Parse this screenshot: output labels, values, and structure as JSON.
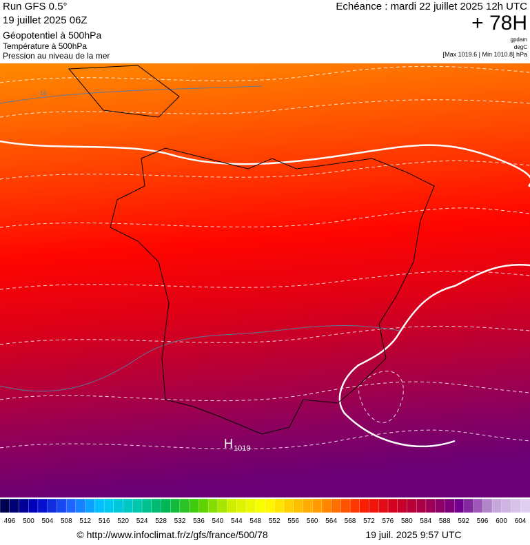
{
  "header": {
    "run": "Run GFS 0.5°",
    "date": "19 juillet 2025 06Z",
    "title": "Géopotentiel à 500hPa",
    "subtitle1": "Température à 500hPa",
    "subtitle2": "Pression au niveau de la mer",
    "echeance": "Echéance : mardi 22 juillet 2025 12h UTC",
    "lead": "+ 78H",
    "unit1": "gpdam",
    "unit2": "degC",
    "range": "[Max 1019.6 | Min 1010.8] hPa"
  },
  "map": {
    "high": "H",
    "high_value": "1019",
    "contour_label": "-16"
  },
  "scale": {
    "labels": [
      496,
      500,
      504,
      508,
      512,
      516,
      520,
      524,
      528,
      532,
      536,
      540,
      544,
      548,
      552,
      556,
      560,
      564,
      568,
      572,
      576,
      580,
      584,
      588,
      592,
      596,
      600,
      604
    ]
  },
  "footer": {
    "url": "© http://www.infoclimat.fr/z/gfs/france/500/78",
    "time": "19 juil. 2025  9:57 UTC"
  }
}
